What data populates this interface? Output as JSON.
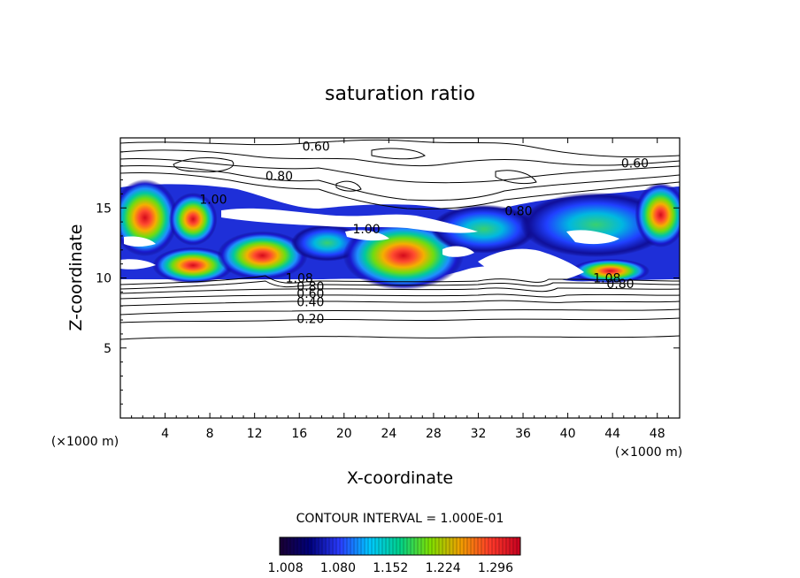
{
  "chart_data": {
    "type": "heatmap",
    "title": "saturation ratio",
    "xlabel": "X-coordinate",
    "ylabel": "Z-coordinate",
    "x_unit": "(×1000 m)",
    "z_unit": "(×1000 m)",
    "xlim": [
      0,
      50
    ],
    "ylim": [
      0,
      20
    ],
    "x_ticks": [
      4,
      8,
      12,
      16,
      20,
      24,
      28,
      32,
      36,
      40,
      44,
      48
    ],
    "y_ticks": [
      5,
      10,
      15
    ],
    "grid": false,
    "contour_interval_text": "CONTOUR INTERVAL = 1.000E-01",
    "contour_levels": [
      0.2,
      0.3,
      0.4,
      0.5,
      0.6,
      0.7,
      0.8,
      0.9,
      1.0
    ],
    "contour_labels": [
      {
        "text": "0.60",
        "x": 17.5,
        "z": 19.4
      },
      {
        "text": "0.80",
        "x": 14.2,
        "z": 17.3
      },
      {
        "text": "0.60",
        "x": 46.0,
        "z": 18.2
      },
      {
        "text": "1.00",
        "x": 8.3,
        "z": 15.6
      },
      {
        "text": "1.00",
        "x": 22.0,
        "z": 13.5
      },
      {
        "text": "0.80",
        "x": 35.6,
        "z": 14.8
      },
      {
        "text": "1.08",
        "x": 16.0,
        "z": 10.0
      },
      {
        "text": "0.80",
        "x": 17.0,
        "z": 9.4
      },
      {
        "text": "0.60",
        "x": 17.0,
        "z": 8.9
      },
      {
        "text": "0.40",
        "x": 17.0,
        "z": 8.3
      },
      {
        "text": "0.20",
        "x": 17.0,
        "z": 7.1
      },
      {
        "text": "1.08",
        "x": 43.5,
        "z": 10.0
      },
      {
        "text": "0.80",
        "x": 44.7,
        "z": 9.6
      }
    ],
    "colorbar": {
      "colors": [
        "#1a0033",
        "#00007a",
        "#2a3cff",
        "#00c8ff",
        "#00d18a",
        "#7ee000",
        "#f0a000",
        "#ff3a2a",
        "#c60020"
      ],
      "tick_labels": [
        "1.008",
        "1.080",
        "1.152",
        "1.224",
        "1.296"
      ],
      "range": [
        1.0,
        1.33
      ]
    },
    "supersaturated_regions": [
      {
        "cx": 2.2,
        "cz": 14.3,
        "rx": 2.2,
        "rz": 1.9,
        "peak": 1.32
      },
      {
        "cx": 6.5,
        "cz": 14.2,
        "rx": 1.6,
        "rz": 1.3,
        "peak": 1.26
      },
      {
        "cx": 6.5,
        "cz": 10.9,
        "rx": 2.7,
        "rz": 0.9,
        "peak": 1.3
      },
      {
        "cx": 12.7,
        "cz": 11.6,
        "rx": 3.0,
        "rz": 1.2,
        "peak": 1.32
      },
      {
        "cx": 18.5,
        "cz": 12.5,
        "rx": 2.4,
        "rz": 0.9,
        "peak": 1.15
      },
      {
        "cx": 25.3,
        "cz": 11.6,
        "rx": 4.0,
        "rz": 1.7,
        "peak": 1.33
      },
      {
        "cx": 32.5,
        "cz": 13.5,
        "rx": 3.5,
        "rz": 1.2,
        "peak": 1.16
      },
      {
        "cx": 42.5,
        "cz": 13.8,
        "rx": 5.0,
        "rz": 1.6,
        "peak": 1.18
      },
      {
        "cx": 48.3,
        "cz": 14.5,
        "rx": 1.7,
        "rz": 1.6,
        "peak": 1.3
      },
      {
        "cx": 43.8,
        "cz": 10.5,
        "rx": 2.6,
        "rz": 0.6,
        "peak": 1.27
      }
    ]
  }
}
